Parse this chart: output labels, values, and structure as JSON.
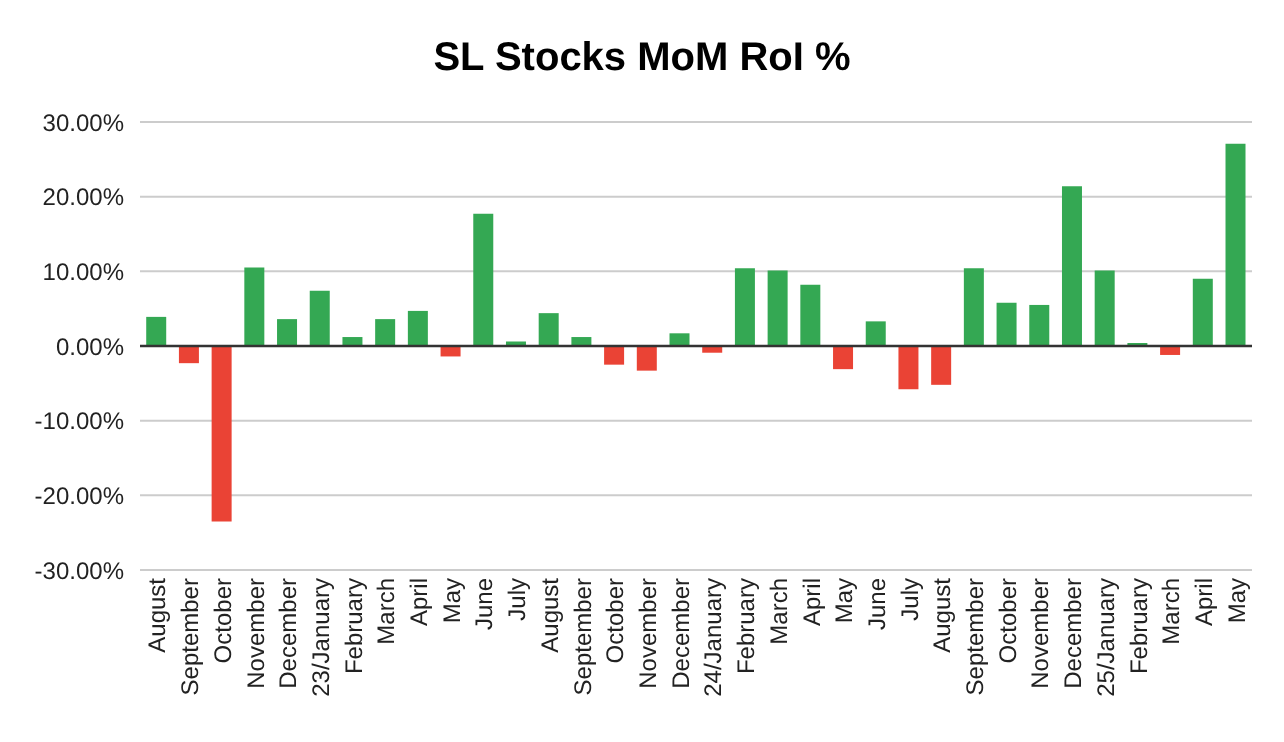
{
  "chart_data": {
    "type": "bar",
    "title": "SL Stocks MoM RoI %",
    "categories": [
      "August",
      "September",
      "October",
      "November",
      "December",
      "23/January",
      "February",
      "March",
      "April",
      "May",
      "June",
      "July",
      "August",
      "September",
      "October",
      "November",
      "December",
      "24/January",
      "February",
      "March",
      "April",
      "May",
      "June",
      "July",
      "August",
      "September",
      "October",
      "November",
      "December",
      "25/January",
      "February",
      "March",
      "April",
      "May"
    ],
    "values": [
      3.9,
      -2.3,
      -23.5,
      10.5,
      3.6,
      7.4,
      1.2,
      3.6,
      4.7,
      -1.4,
      17.7,
      0.6,
      4.4,
      1.2,
      -2.5,
      -3.3,
      1.7,
      -0.9,
      10.4,
      10.1,
      8.2,
      -3.1,
      3.3,
      -5.8,
      -5.2,
      10.4,
      5.8,
      5.5,
      21.4,
      10.1,
      0.4,
      -1.2,
      9.0,
      27.1
    ],
    "colors": [
      "#34a853",
      "#ea4335",
      "#ea4335",
      "#34a853",
      "#34a853",
      "#34a853",
      "#34a853",
      "#34a853",
      "#34a853",
      "#ea4335",
      "#34a853",
      "#34a853",
      "#34a853",
      "#34a853",
      "#ea4335",
      "#ea4335",
      "#34a853",
      "#ea4335",
      "#34a853",
      "#34a853",
      "#34a853",
      "#ea4335",
      "#34a853",
      "#ea4335",
      "#ea4335",
      "#34a853",
      "#34a853",
      "#34a853",
      "#34a853",
      "#34a853",
      "#34a853",
      "#ea4335",
      "#34a853",
      "#34a853"
    ],
    "ylim": [
      -30,
      30
    ],
    "yticks": [
      {
        "value": -30,
        "label": "-30.00%"
      },
      {
        "value": -20,
        "label": "-20.00%"
      },
      {
        "value": -10,
        "label": "-10.00%"
      },
      {
        "value": 0,
        "label": "0.00%"
      },
      {
        "value": 10,
        "label": "10.00%"
      },
      {
        "value": 20,
        "label": "20.00%"
      },
      {
        "value": 30,
        "label": "30.00%"
      }
    ],
    "grid": "y",
    "legend": false
  }
}
